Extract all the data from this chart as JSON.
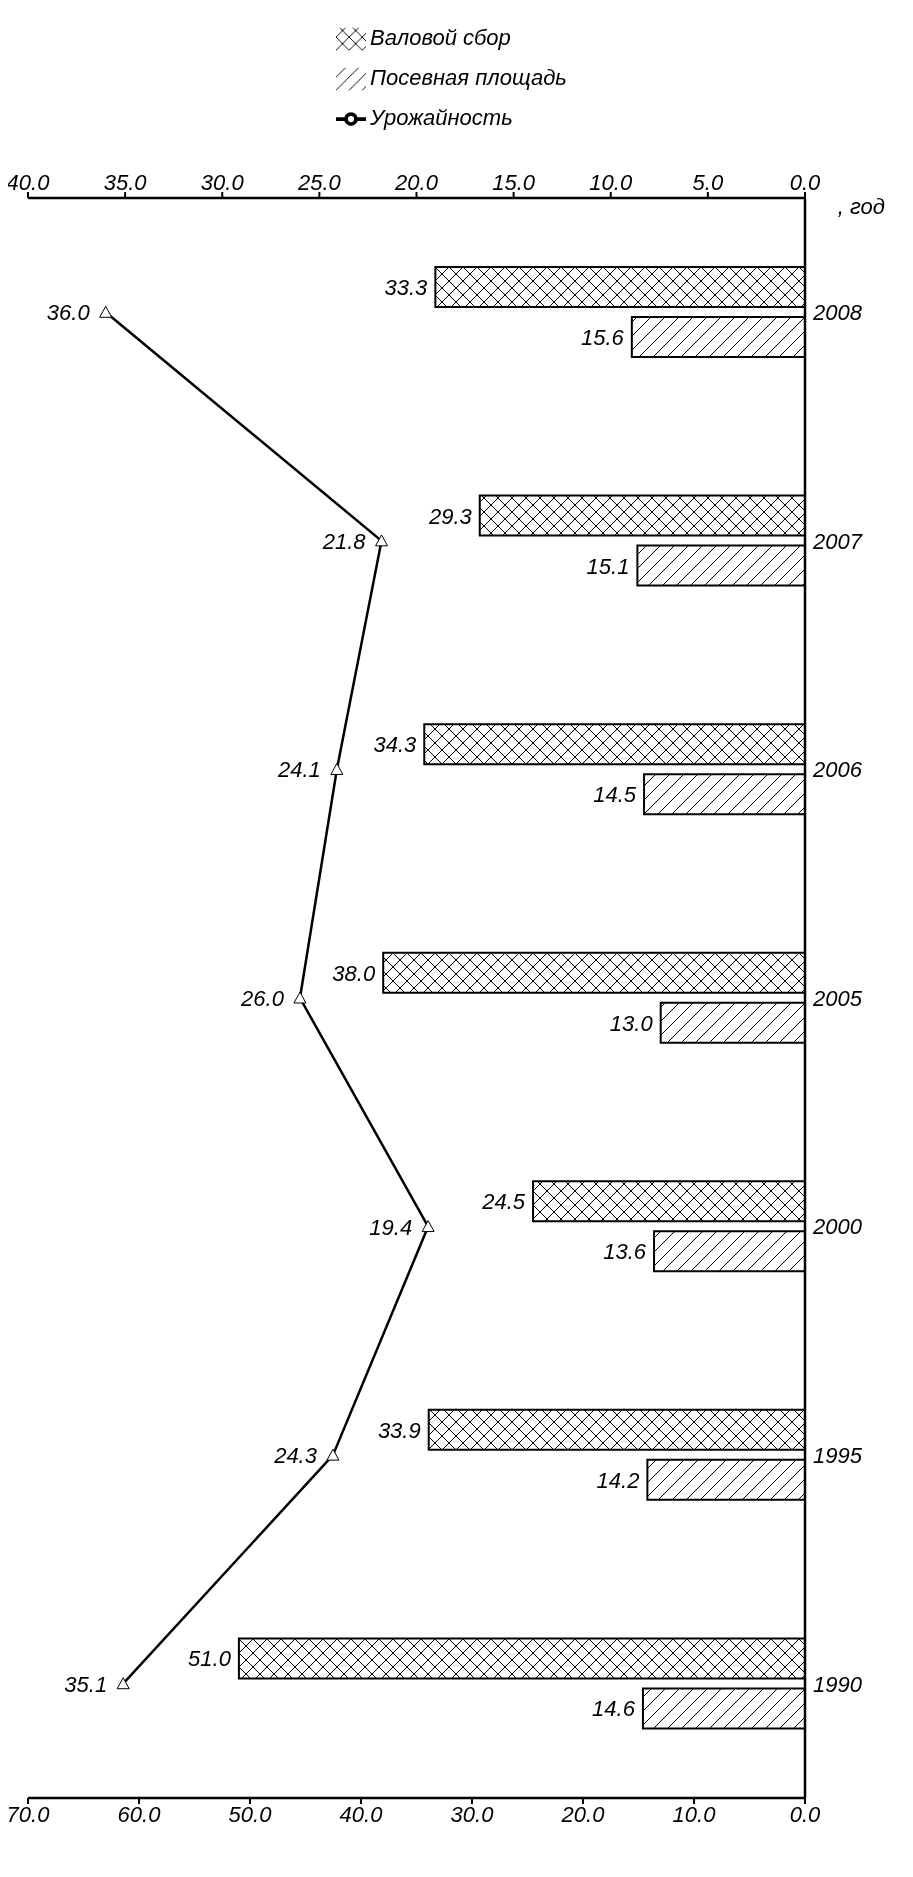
{
  "chart_data": {
    "type": "bar",
    "orientation": "horizontal",
    "ylabel": ", год",
    "categories": [
      "2008",
      "2007",
      "2006",
      "2005",
      "2000",
      "1995",
      "1990"
    ],
    "series": [
      {
        "name": "Посевная площадь",
        "color": "#000000",
        "values": [
          15.6,
          15.1,
          14.5,
          13.0,
          13.6,
          14.2,
          14.6
        ],
        "value_labels": [
          "15.6",
          "15.1",
          "14.5",
          "13.0",
          "13.6",
          "14.2",
          "14.6"
        ]
      },
      {
        "name": "Валовой сбор",
        "color": "#000000",
        "values": [
          33.3,
          29.3,
          34.3,
          38.0,
          24.5,
          33.9,
          51.0
        ],
        "value_labels": [
          "33.3",
          "29.3",
          "34.3",
          "38.0",
          "24.5",
          "33.9",
          "51.0"
        ]
      },
      {
        "name": "Урожайность",
        "type": "line",
        "axis": "x2",
        "color": "#000000",
        "values": [
          36.0,
          21.8,
          24.1,
          26.0,
          19.4,
          24.3,
          35.1
        ],
        "value_labels": [
          "36.0",
          "21.8",
          "24.1",
          "26.0",
          "19.4",
          "24.3",
          "35.1"
        ]
      }
    ],
    "xlim": [
      70,
      0
    ],
    "xticks": [
      {
        "value": 70,
        "label": "70.0"
      },
      {
        "value": 60,
        "label": "60.0"
      },
      {
        "value": 50,
        "label": "50.0"
      },
      {
        "value": 40,
        "label": "40.0"
      },
      {
        "value": 30,
        "label": "30.0"
      },
      {
        "value": 20,
        "label": "20.0"
      },
      {
        "value": 10,
        "label": "10.0"
      },
      {
        "value": 0,
        "label": "0.0"
      }
    ],
    "x2lim": [
      40,
      0
    ],
    "x2ticks": [
      {
        "value": 40,
        "label": "40.0"
      },
      {
        "value": 35,
        "label": "35.0"
      },
      {
        "value": 30,
        "label": "30.0"
      },
      {
        "value": 25,
        "label": "25.0"
      },
      {
        "value": 20,
        "label": "20.0"
      },
      {
        "value": 15,
        "label": "15.0"
      },
      {
        "value": 10,
        "label": "10.0"
      },
      {
        "value": 5,
        "label": "5.0"
      },
      {
        "value": 0,
        "label": "0.0"
      }
    ],
    "marker": "triangle",
    "legend": "top",
    "grid": false
  }
}
